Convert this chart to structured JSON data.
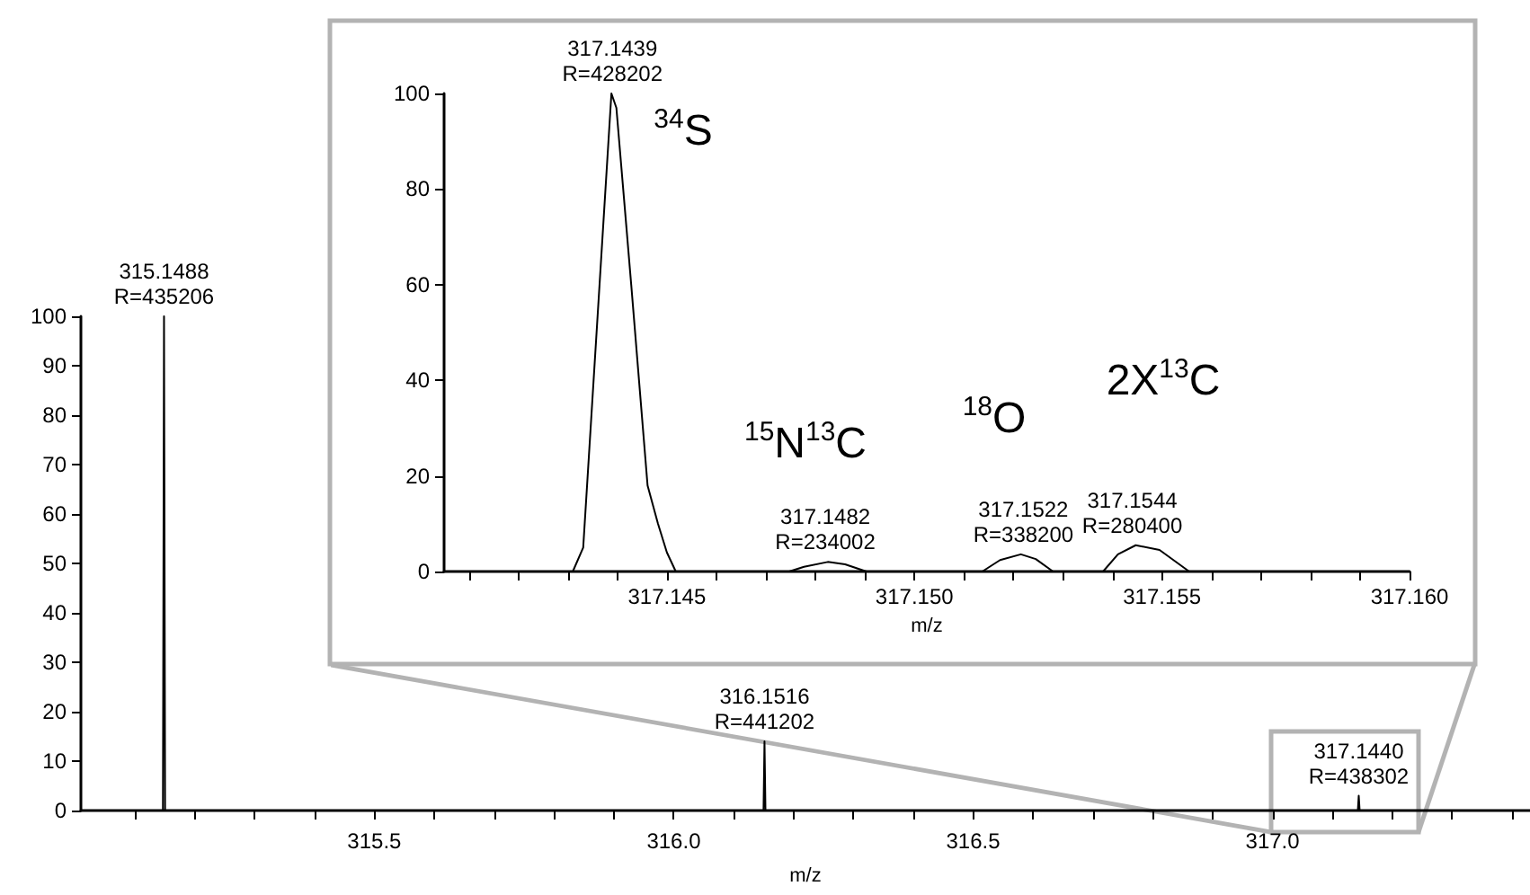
{
  "chart_data": [
    {
      "type": "line",
      "xlabel": "m/z",
      "xlim": [
        315.01,
        317.43
      ],
      "ylim": [
        0,
        100
      ],
      "marker": "none",
      "line_style": "solid",
      "xticks": [
        {
          "value": 315.1,
          "label": null
        },
        {
          "value": 315.2,
          "label": null
        },
        {
          "value": 315.3,
          "label": null
        },
        {
          "value": 315.4,
          "label": null
        },
        315.5,
        {
          "value": 315.6,
          "label": null
        },
        {
          "value": 315.7,
          "label": null
        },
        {
          "value": 315.8,
          "label": null
        },
        {
          "value": 315.9,
          "label": null
        },
        {
          "value": 316,
          "label": "316.0"
        },
        {
          "value": 316.1,
          "label": null
        },
        {
          "value": 316.2,
          "label": null
        },
        {
          "value": 316.3,
          "label": null
        },
        {
          "value": 316.4,
          "label": null
        },
        316.5,
        {
          "value": 316.6,
          "label": null
        },
        {
          "value": 316.7,
          "label": null
        },
        {
          "value": 316.8,
          "label": null
        },
        {
          "value": 316.9,
          "label": null
        },
        {
          "value": 317,
          "label": "317.0"
        },
        {
          "value": 317.1,
          "label": null
        },
        {
          "value": 317.2,
          "label": null
        },
        {
          "value": 317.3,
          "label": null
        },
        {
          "value": 317.4,
          "label": null
        }
      ],
      "yticks": [
        0,
        10,
        20,
        30,
        40,
        50,
        60,
        70,
        80,
        90,
        100
      ],
      "x": [
        315.01,
        315.147,
        315.1488,
        315.1506,
        316.15,
        316.1516,
        316.1532,
        317.1425,
        317.144,
        317.1455,
        317.43
      ],
      "series": [
        {
          "color": "#000000",
          "values": [
            0,
            0,
            100,
            0,
            0,
            14,
            0,
            0,
            3,
            0,
            0
          ]
        }
      ],
      "annotations": [
        {
          "text": "315.1488\nR=435206",
          "x": 315.1488,
          "y": 100
        },
        {
          "text": "316.1516\nR=441202",
          "x": 316.1516,
          "y": 14
        },
        {
          "text": "317.1440\nR=438302",
          "x": 317.144,
          "y": 3
        }
      ]
    },
    {
      "type": "line",
      "xlabel": "m/z",
      "xlim": [
        317.1405,
        317.16
      ],
      "ylim": [
        0,
        100
      ],
      "marker": "none",
      "line_style": "solid",
      "xticks": [
        {
          "value": 317.141,
          "label": null
        },
        {
          "value": 317.142,
          "label": null
        },
        {
          "value": 317.143,
          "label": null
        },
        {
          "value": 317.144,
          "label": null
        },
        317.145,
        {
          "value": 317.146,
          "label": null
        },
        {
          "value": 317.147,
          "label": null
        },
        {
          "value": 317.148,
          "label": null
        },
        {
          "value": 317.149,
          "label": null
        },
        {
          "value": 317.15,
          "label": "317.150"
        },
        {
          "value": 317.151,
          "label": null
        },
        {
          "value": 317.152,
          "label": null
        },
        {
          "value": 317.153,
          "label": null
        },
        {
          "value": 317.154,
          "label": null
        },
        317.155,
        {
          "value": 317.156,
          "label": null
        },
        {
          "value": 317.157,
          "label": null
        },
        {
          "value": 317.158,
          "label": null
        },
        {
          "value": 317.159,
          "label": null
        },
        {
          "value": 317.16,
          "label": "317.160"
        }
      ],
      "yticks": [
        0,
        20,
        40,
        60,
        80,
        100
      ],
      "x": [
        317.1405,
        317.1431,
        317.14331,
        317.14388,
        317.14398,
        317.14428,
        317.14461,
        317.14482,
        317.145,
        317.14518,
        317.14747,
        317.14777,
        317.14825,
        317.1486,
        317.14903,
        317.15137,
        317.15173,
        317.15215,
        317.15245,
        317.1528,
        317.15381,
        317.15411,
        317.15447,
        317.15495,
        317.15555,
        317.16
      ],
      "series": [
        {
          "color": "#000000",
          "values": [
            0,
            0,
            5,
            100,
            97,
            60,
            18,
            10,
            4,
            0,
            0,
            1,
            2,
            1.5,
            0,
            0,
            2.4,
            3.6,
            2.6,
            0,
            0,
            3.6,
            5.5,
            4.5,
            0,
            0
          ]
        }
      ],
      "annotations": [
        {
          "text": "317.1439\nR=428202",
          "x": 317.1439,
          "y": 100
        },
        {
          "text": "317.1482\nR=234002",
          "x": 317.1482,
          "y": 2
        },
        {
          "text": "317.1522\nR=338200",
          "x": 317.1522,
          "y": 3.6
        },
        {
          "text": "317.1544\nR=280400",
          "x": 317.1544,
          "y": 5.5
        },
        "$^{34}$S",
        "$^{15}$N$^{13}$C",
        "$^{18}$O",
        "2X$^{13}$C"
      ]
    }
  ]
}
